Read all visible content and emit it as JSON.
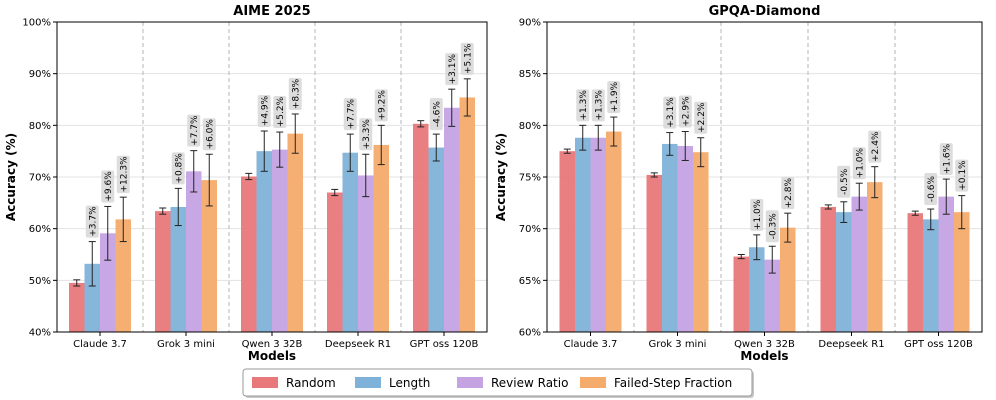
{
  "chart_data": [
    {
      "type": "bar",
      "title": "AIME 2025",
      "xlabel": "Models",
      "ylabel": "Accuracy (%)",
      "ylim": [
        40,
        100
      ],
      "yticks": [
        "40%",
        "50%",
        "60%",
        "70%",
        "80%",
        "90%",
        "100%"
      ],
      "grid": true,
      "categories": [
        "Claude 3.7",
        "Grok 3 mini",
        "Qwen 3 32B",
        "Deepseek R1",
        "GPT oss 120B"
      ],
      "series": [
        {
          "name": "Random",
          "values": [
            49.5,
            63.4,
            70.1,
            67.0,
            80.3
          ],
          "errors": [
            0.6,
            0.6,
            0.6,
            0.6,
            0.6
          ]
        },
        {
          "name": "Length",
          "values": [
            53.2,
            64.2,
            75.0,
            74.7,
            75.7
          ],
          "errors": [
            4.3,
            3.6,
            3.9,
            3.6,
            2.6
          ]
        },
        {
          "name": "Review Ratio",
          "values": [
            59.1,
            71.1,
            75.3,
            70.3,
            83.4
          ],
          "errors": [
            5.2,
            4.0,
            3.4,
            4.1,
            3.6
          ]
        },
        {
          "name": "Failed-Step Fraction",
          "values": [
            61.8,
            69.4,
            78.4,
            76.2,
            85.4
          ],
          "errors": [
            4.3,
            5.0,
            3.8,
            3.8,
            3.6
          ]
        }
      ],
      "delta_labels": [
        [
          "+3.7%",
          "+9.6%",
          "+12.3%"
        ],
        [
          "+0.8%",
          "+7.7%",
          "+6.0%"
        ],
        [
          "+4.9%",
          "+5.2%",
          "+8.3%"
        ],
        [
          "+7.7%",
          "+3.3%",
          "+9.2%"
        ],
        [
          "-4.6%",
          "+3.1%",
          "+5.1%"
        ]
      ]
    },
    {
      "type": "bar",
      "title": "GPQA-Diamond",
      "xlabel": "Models",
      "ylabel": "Accuracy (%)",
      "ylim": [
        60,
        90
      ],
      "yticks": [
        "60%",
        "65%",
        "70%",
        "75%",
        "80%",
        "85%",
        "90%"
      ],
      "grid": true,
      "categories": [
        "Claude 3.7",
        "Grok 3 mini",
        "Qwen 3 32B",
        "Deepseek R1",
        "GPT oss 120B"
      ],
      "series": [
        {
          "name": "Random",
          "values": [
            77.5,
            75.2,
            67.3,
            72.1,
            71.5
          ],
          "errors": [
            0.2,
            0.2,
            0.2,
            0.2,
            0.2
          ]
        },
        {
          "name": "Length",
          "values": [
            78.8,
            78.2,
            68.2,
            71.6,
            70.9
          ],
          "errors": [
            1.2,
            1.1,
            1.2,
            1.0,
            1.0
          ]
        },
        {
          "name": "Review Ratio",
          "values": [
            78.8,
            78.0,
            67.0,
            73.1,
            73.1
          ],
          "errors": [
            1.2,
            1.4,
            1.3,
            1.3,
            1.7
          ]
        },
        {
          "name": "Failed-Step Fraction",
          "values": [
            79.4,
            77.4,
            70.1,
            74.5,
            71.6
          ],
          "errors": [
            1.4,
            1.4,
            1.4,
            1.5,
            1.6
          ]
        }
      ],
      "delta_labels": [
        [
          "+1.3%",
          "+1.3%",
          "+1.9%"
        ],
        [
          "+3.1%",
          "+2.9%",
          "+2.2%"
        ],
        [
          "+1.0%",
          "-0.3%",
          "+2.8%"
        ],
        [
          "-0.5%",
          "+1.0%",
          "+2.4%"
        ],
        [
          "-0.6%",
          "+1.6%",
          "+0.1%"
        ]
      ]
    }
  ],
  "legend": {
    "position": "bottom-center",
    "items": [
      "Random",
      "Length",
      "Review Ratio",
      "Failed-Step Fraction"
    ]
  },
  "colors": {
    "Random": "#e8787a",
    "Length": "#7fb2d8",
    "Review Ratio": "#c5a3e3",
    "Failed-Step Fraction": "#f5ab6b",
    "delta_label_bg": "#d9d9d9"
  }
}
